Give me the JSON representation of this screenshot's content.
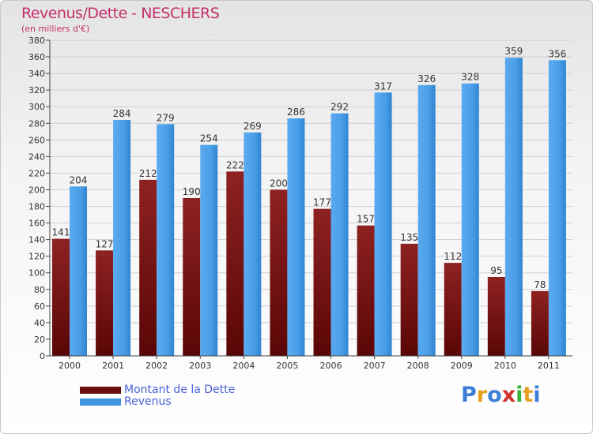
{
  "header": {
    "title": "Revenus/Dette - NESCHERS",
    "subtitle": "(en milliers d'€)"
  },
  "colors": {
    "dette": "#7a1414",
    "revenus": "#4a9fe8",
    "title": "#c4306a",
    "legend_text": "#4a62d6"
  },
  "legend": {
    "items": [
      {
        "label": "Montant de la Dette",
        "color": "#6b0e0e"
      },
      {
        "label": "Revenus",
        "color": "#3f95e0"
      }
    ]
  },
  "logo": {
    "letters": [
      "P",
      "r",
      "o",
      "x",
      "i",
      "t",
      "i"
    ],
    "colors": [
      "#3c7fd6",
      "#e8a020",
      "#3c7fd6",
      "#d23030",
      "#3caf3c",
      "#e8a020",
      "#3c7fd6"
    ]
  },
  "chart_data": {
    "type": "bar",
    "categories": [
      "2000",
      "2001",
      "2002",
      "2003",
      "2004",
      "2005",
      "2006",
      "2007",
      "2008",
      "2009",
      "2010",
      "2011"
    ],
    "series": [
      {
        "name": "Montant de la Dette",
        "values": [
          141,
          127,
          212,
          190,
          222,
          200,
          177,
          157,
          135,
          112,
          95,
          78
        ]
      },
      {
        "name": "Revenus",
        "values": [
          204,
          284,
          279,
          254,
          269,
          286,
          292,
          317,
          326,
          328,
          359,
          356
        ]
      }
    ],
    "ylim": [
      0,
      380
    ],
    "ytick_step": 20,
    "grid": true,
    "legend_position": "bottom-left",
    "title": "Revenus/Dette - NESCHERS",
    "ylabel": "(en milliers d'€)"
  }
}
